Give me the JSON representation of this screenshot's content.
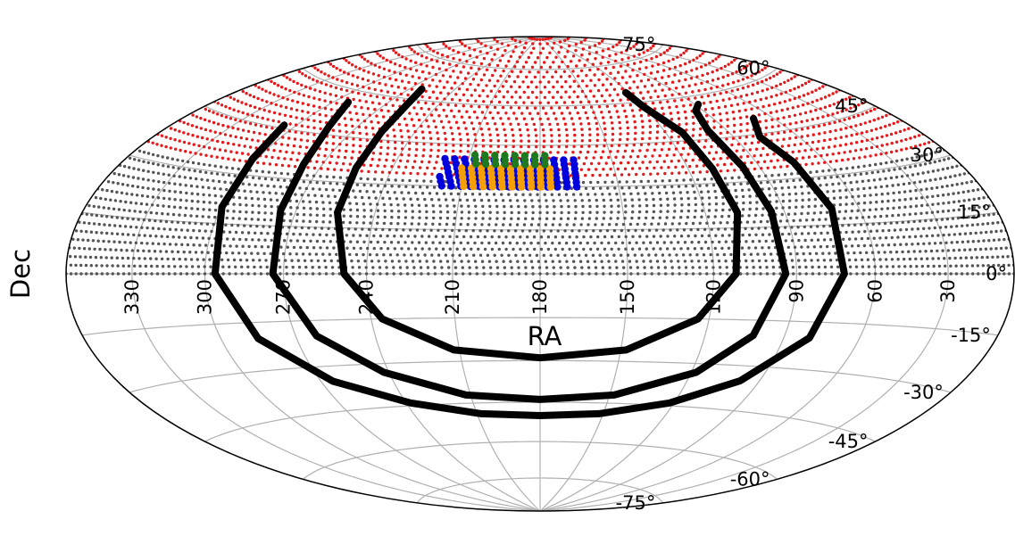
{
  "chart_data": {
    "type": "scatter",
    "projection": "hammer",
    "xlabel": "RA",
    "ylabel": "Dec",
    "xlim": [
      0,
      360
    ],
    "ylim": [
      -90,
      90
    ],
    "grid": true,
    "ra_tick_labels": [
      "330",
      "300",
      "270",
      "240",
      "210",
      "180",
      "150",
      "120",
      "90",
      "60",
      "30"
    ],
    "ra_tick_values": [
      330,
      300,
      270,
      240,
      210,
      180,
      150,
      120,
      90,
      60,
      30
    ],
    "dec_tick_labels": [
      "75°",
      "60°",
      "45°",
      "30°",
      "15°",
      "0°",
      "-15°",
      "-30°",
      "-45°",
      "-60°",
      "-75°"
    ],
    "dec_tick_values": [
      75,
      60,
      45,
      30,
      15,
      0,
      -15,
      -30,
      -45,
      -60,
      -75
    ],
    "series": [
      {
        "color": "#555555",
        "ra_range": [
          0,
          360
        ],
        "dec_range": [
          0,
          33
        ],
        "marker": "dot"
      },
      {
        "color": "#e41a1c",
        "ra_range": [
          0,
          360
        ],
        "dec_range": [
          34,
          90
        ],
        "marker": "dot"
      },
      {
        "color": "#0000dd",
        "ra_range": [
          166,
          220
        ],
        "dec_range": [
          30,
          40
        ],
        "marker": "dot"
      },
      {
        "color": "#f5a000",
        "ra_range": [
          176,
          212
        ],
        "dec_range": [
          30,
          38
        ],
        "marker": "dot"
      },
      {
        "color": "#1f7a1f",
        "ra_range": [
          178,
          208
        ],
        "dec_range": [
          38,
          42
        ],
        "marker": "dot"
      }
    ],
    "curves": [
      {
        "color": "#000000",
        "points": [
          [
            306,
            46
          ],
          [
            302,
            35
          ],
          [
            300,
            20
          ],
          [
            296,
            0
          ],
          [
            285,
            -20
          ],
          [
            265,
            -35
          ],
          [
            238,
            -44
          ],
          [
            208,
            -49
          ],
          [
            180,
            -50
          ],
          [
            152,
            -49
          ],
          [
            122,
            -44
          ],
          [
            98,
            -35
          ],
          [
            80,
            -20
          ],
          [
            72,
            0
          ],
          [
            71,
            20
          ],
          [
            74,
            35
          ],
          [
            78,
            44
          ],
          [
            70,
            50
          ]
        ]
      },
      {
        "color": "#000000",
        "points": [
          [
            292,
            56
          ],
          [
            284,
            48
          ],
          [
            278,
            35
          ],
          [
            276,
            20
          ],
          [
            274,
            0
          ],
          [
            262,
            -20
          ],
          [
            242,
            -33
          ],
          [
            212,
            -42
          ],
          [
            180,
            -44
          ],
          [
            148,
            -42
          ],
          [
            118,
            -33
          ],
          [
            102,
            -20
          ],
          [
            94,
            0
          ],
          [
            95,
            20
          ],
          [
            97,
            35
          ],
          [
            99,
            48
          ],
          [
            94,
            55
          ],
          [
            88,
            57
          ]
        ]
      },
      {
        "color": "#000000",
        "points": [
          [
            262,
            64
          ],
          [
            258,
            58
          ],
          [
            256,
            48
          ],
          [
            255,
            35
          ],
          [
            254,
            20
          ],
          [
            248,
            0
          ],
          [
            236,
            -15
          ],
          [
            212,
            -26
          ],
          [
            180,
            -29
          ],
          [
            148,
            -26
          ],
          [
            124,
            -15
          ],
          [
            112,
            0
          ],
          [
            108,
            20
          ],
          [
            110,
            35
          ],
          [
            112,
            48
          ],
          [
            120,
            58
          ],
          [
            122,
            64
          ]
        ]
      }
    ]
  }
}
